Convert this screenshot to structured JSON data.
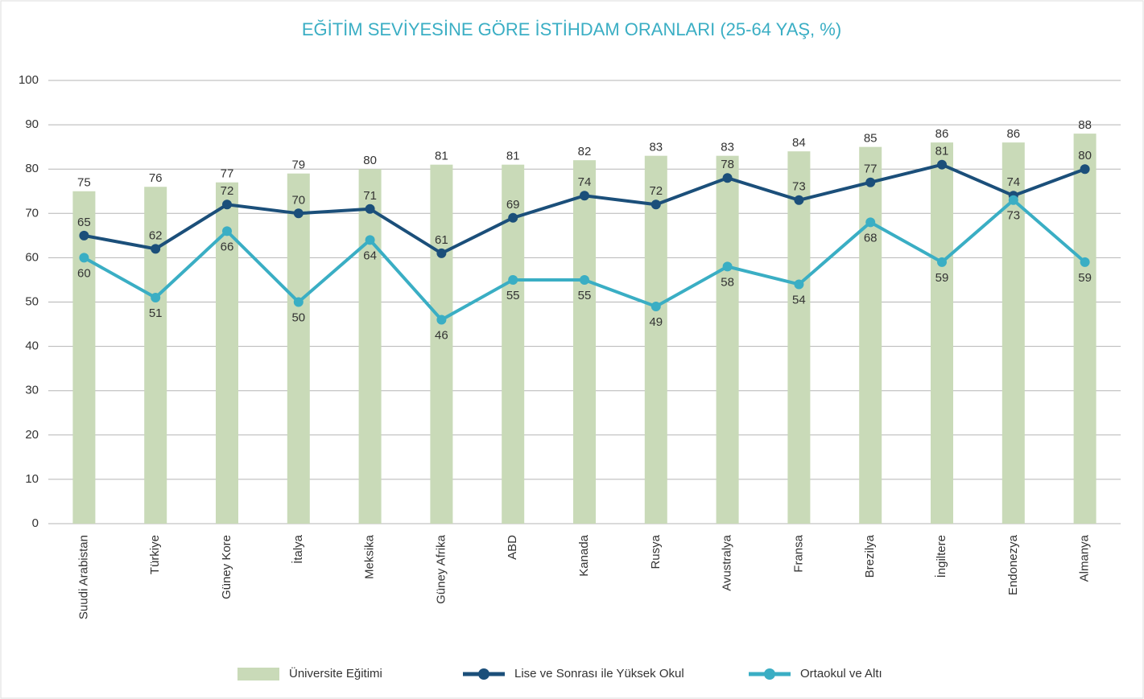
{
  "chart_data": {
    "type": "bar",
    "title": "EĞİTİM SEVİYESİNE GÖRE İSTİHDAM ORANLARI (25-64 YAŞ, %)",
    "categories": [
      "Suudi Arabistan",
      "Türkiye",
      "Güney Kore",
      "İtalya",
      "Meksika",
      "Güney Afrika",
      "ABD",
      "Kanada",
      "Rusya",
      "Avustralya",
      "Fransa",
      "Brezilya",
      "İngiltere",
      "Endonezya",
      "Almanya"
    ],
    "series": [
      {
        "name": "Üniversite Eğitimi",
        "type": "bar",
        "color": "#c9dab8",
        "values": [
          75,
          76,
          77,
          79,
          80,
          81,
          81,
          82,
          83,
          83,
          84,
          85,
          86,
          86,
          88
        ]
      },
      {
        "name": "Lise ve Sonrası ile Yüksek Okul",
        "type": "line",
        "color": "#1b4f7a",
        "values": [
          65,
          62,
          72,
          70,
          71,
          61,
          69,
          74,
          72,
          78,
          73,
          77,
          81,
          74,
          80
        ]
      },
      {
        "name": "Ortaokul ve Altı",
        "type": "line",
        "color": "#3aaec4",
        "values": [
          60,
          51,
          66,
          50,
          64,
          46,
          55,
          55,
          49,
          58,
          54,
          68,
          59,
          73,
          59
        ]
      }
    ],
    "ylim": [
      0,
      100
    ],
    "yticks": [
      0,
      10,
      20,
      30,
      40,
      50,
      60,
      70,
      80,
      90,
      100
    ],
    "grid": true
  }
}
